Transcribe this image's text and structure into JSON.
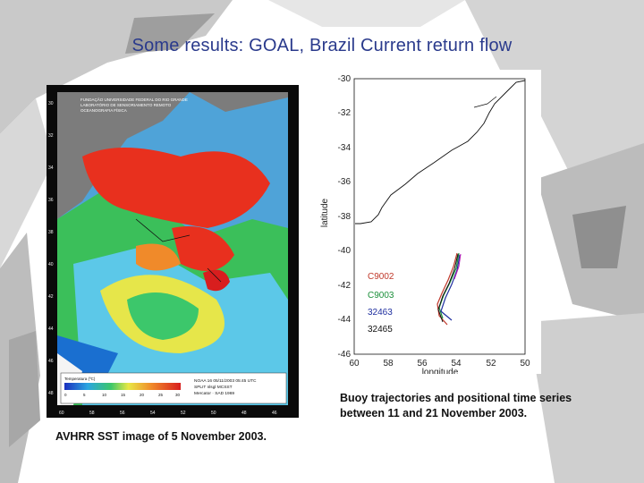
{
  "slide": {
    "title": "Some results: GOAL, Brazil Current return flow"
  },
  "left_image": {
    "header_lines": [
      "FUNDAÇÃO UNIVERSIDADE FEDERAL DO RIO GRANDE",
      "LABORATÓRIO DE SENSORIAMENTO REMOTO",
      "OCEANOGRAFIA FÍSICA"
    ],
    "legend_title": "Temperatura (ºC)",
    "colorbar_ticks": [
      "0",
      "5",
      "10",
      "15",
      "20",
      "25",
      "30"
    ],
    "info_lines": [
      "NOAA 16 05/11/2003 05:45 UTC",
      "SPLIT nlsgl MCSST",
      "Mercator · SAD 1969"
    ],
    "lat_ticks": [
      "30",
      "32",
      "34",
      "36",
      "38",
      "40",
      "42",
      "44",
      "46",
      "48"
    ],
    "lon_ticks": [
      "60",
      "58",
      "56",
      "54",
      "52",
      "50",
      "48",
      "46"
    ],
    "caption": "AVHRR SST image of 5 November 2003."
  },
  "right_plot": {
    "ylabel": "latitude",
    "xlabel": "longitude",
    "yticks": [
      "-30",
      "-32",
      "-34",
      "-36",
      "-38",
      "-40",
      "-42",
      "-44",
      "-46"
    ],
    "xticks": [
      "60",
      "58",
      "56",
      "54",
      "52",
      "50"
    ],
    "buoys": [
      {
        "name": "C9002",
        "color": "#c0392b"
      },
      {
        "name": "C9003",
        "color": "#1b8f3a"
      },
      {
        "name": "32463",
        "color": "#1f2f9f"
      },
      {
        "name": "32465",
        "color": "#111111"
      }
    ],
    "caption_line1": "Buoy trajectories and positional time series",
    "caption_line2": "between 11 and 21 November 2003."
  }
}
